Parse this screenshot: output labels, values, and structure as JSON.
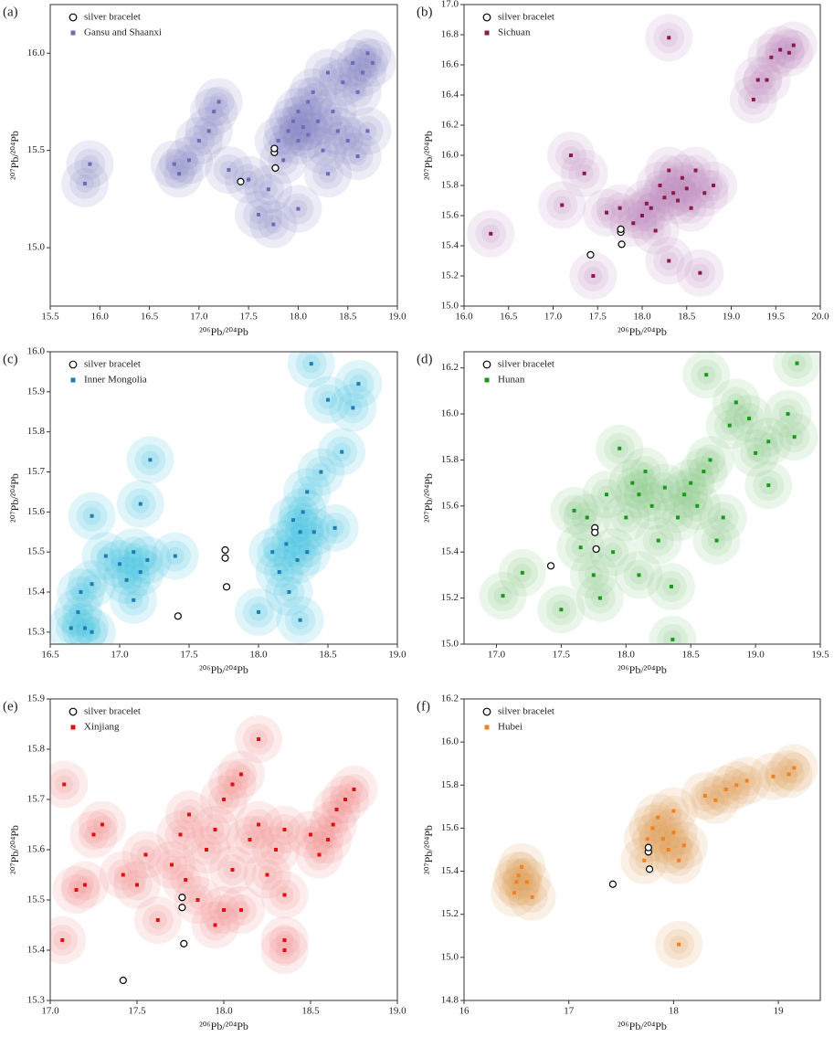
{
  "chart_data": [
    {
      "type": "scatter",
      "panel_label": "(a)",
      "x_label": "²⁰⁶Pb/²⁰⁴Pb",
      "y_label": "²⁰⁷Pb/²⁰⁴Pb",
      "xlim": [
        15.5,
        19.0
      ],
      "ylim": [
        14.7,
        16.25
      ],
      "xticks": [
        15.5,
        {
          "value": 16,
          "label": "16.0"
        },
        16.5,
        {
          "value": 17,
          "label": "17.0"
        },
        17.5,
        {
          "value": 18,
          "label": "18.0"
        },
        18.5,
        {
          "value": 19,
          "label": "19.0"
        }
      ],
      "yticks": [
        {
          "value": 15,
          "label": "15.0"
        },
        15.5,
        {
          "value": 16,
          "label": "16.0"
        }
      ],
      "series": [
        {
          "name": "silver bracelet",
          "color": "#000000",
          "marker": "circle",
          "x": [
            17.42,
            17.76,
            17.76,
            17.77
          ],
          "y": [
            15.34,
            15.49,
            15.51,
            15.41
          ]
        },
        {
          "name": "Gansu and Shaanxi",
          "color": "#6b6bb8",
          "halo_color": "#8a8ac8",
          "marker": "square",
          "x": [
            15.85,
            15.9,
            16.75,
            16.8,
            16.9,
            17.0,
            17.1,
            17.15,
            17.2,
            17.3,
            17.5,
            17.6,
            17.7,
            17.8,
            17.85,
            17.9,
            17.95,
            18.0,
            18.0,
            18.05,
            18.1,
            18.1,
            18.15,
            18.2,
            18.25,
            18.3,
            18.35,
            18.4,
            18.45,
            18.5,
            18.55,
            18.6,
            18.65,
            18.7,
            18.75,
            18.7,
            18.6,
            18.3,
            18.0,
            17.75
          ],
          "y": [
            15.33,
            15.43,
            15.43,
            15.38,
            15.45,
            15.55,
            15.6,
            15.7,
            15.75,
            15.4,
            15.35,
            15.17,
            15.3,
            15.55,
            15.45,
            15.6,
            15.65,
            15.55,
            15.7,
            15.62,
            15.58,
            15.75,
            15.8,
            15.65,
            15.5,
            15.9,
            15.7,
            15.6,
            15.85,
            15.55,
            15.95,
            15.8,
            15.9,
            15.6,
            15.95,
            16.0,
            15.47,
            15.38,
            15.2,
            15.12
          ]
        }
      ]
    },
    {
      "type": "scatter",
      "panel_label": "(b)",
      "x_label": "²⁰⁶Pb/²⁰⁴Pb",
      "y_label": "²⁰⁷Pb/²⁰⁴Pb",
      "xlim": [
        16.0,
        20.0
      ],
      "ylim": [
        15.0,
        17.0
      ],
      "xticks": [
        {
          "value": 16,
          "label": "16.0"
        },
        16.5,
        {
          "value": 17,
          "label": "17.0"
        },
        17.5,
        {
          "value": 18,
          "label": "18.0"
        },
        18.5,
        {
          "value": 19,
          "label": "19.0"
        },
        19.5,
        {
          "value": 20,
          "label": "20.0"
        }
      ],
      "yticks": [
        {
          "value": 15,
          "label": "15.0"
        },
        15.2,
        15.4,
        15.6,
        15.8,
        {
          "value": 16,
          "label": "16.0"
        },
        16.2,
        16.4,
        16.6,
        16.8,
        {
          "value": 17,
          "label": "17.0"
        }
      ],
      "series": [
        {
          "name": "silver bracelet",
          "color": "#000000",
          "marker": "circle",
          "x": [
            17.42,
            17.76,
            17.76,
            17.77
          ],
          "y": [
            15.34,
            15.49,
            15.51,
            15.41
          ]
        },
        {
          "name": "Sichuan",
          "color": "#8b1a4a",
          "halo_color": "#c090c0",
          "marker": "square",
          "x": [
            16.3,
            17.1,
            17.2,
            17.35,
            17.45,
            17.6,
            17.75,
            17.9,
            18.0,
            18.05,
            18.1,
            18.15,
            18.2,
            18.25,
            18.3,
            18.35,
            18.4,
            18.45,
            18.5,
            18.55,
            18.6,
            18.7,
            18.8,
            18.65,
            18.3,
            18.3,
            19.25,
            19.3,
            19.45,
            19.55,
            19.7,
            19.65,
            19.4
          ],
          "y": [
            15.48,
            15.67,
            16.0,
            15.88,
            15.2,
            15.62,
            15.65,
            15.55,
            15.6,
            15.68,
            15.65,
            15.5,
            15.8,
            15.72,
            15.9,
            15.75,
            15.7,
            15.85,
            15.78,
            15.65,
            15.9,
            15.75,
            15.8,
            15.22,
            15.3,
            16.78,
            16.37,
            16.5,
            16.65,
            16.7,
            16.73,
            16.68,
            16.5
          ]
        }
      ]
    },
    {
      "type": "scatter",
      "panel_label": "(c)",
      "x_label": "²⁰⁶Pb/²⁰⁴Pb",
      "y_label": "²⁰⁷Pb/²⁰⁴Pb",
      "xlim": [
        16.5,
        19.0
      ],
      "ylim": [
        15.27,
        16.0
      ],
      "xticks": [
        16.5,
        {
          "value": 17,
          "label": "17.0"
        },
        17.5,
        {
          "value": 18,
          "label": "18.0"
        },
        18.5,
        {
          "value": 19,
          "label": "19.0"
        }
      ],
      "yticks": [
        15.3,
        15.4,
        15.5,
        15.6,
        15.7,
        15.8,
        15.9,
        {
          "value": 16,
          "label": "16.0"
        }
      ],
      "series": [
        {
          "name": "silver bracelet",
          "color": "#000000",
          "marker": "circle",
          "x": [
            17.42,
            17.76,
            17.76,
            17.77
          ],
          "y": [
            15.34,
            15.505,
            15.485,
            15.413
          ]
        },
        {
          "name": "Inner Mongolia",
          "color": "#1f7fb0",
          "halo_color": "#40c0e0",
          "marker": "square",
          "x": [
            16.65,
            16.7,
            16.72,
            16.75,
            16.8,
            16.8,
            16.8,
            16.9,
            17.0,
            17.05,
            17.1,
            17.1,
            17.15,
            17.15,
            17.2,
            17.22,
            17.4,
            18.0,
            18.1,
            18.15,
            18.2,
            18.25,
            18.28,
            18.3,
            18.32,
            18.35,
            18.35,
            18.4,
            18.3,
            18.22,
            18.45,
            18.55,
            18.5,
            18.6,
            18.68,
            18.72,
            18.38
          ],
          "y": [
            15.31,
            15.35,
            15.4,
            15.31,
            15.42,
            15.3,
            15.59,
            15.49,
            15.47,
            15.43,
            15.38,
            15.5,
            15.45,
            15.62,
            15.48,
            15.73,
            15.49,
            15.35,
            15.5,
            15.45,
            15.52,
            15.58,
            15.48,
            15.55,
            15.6,
            15.5,
            15.65,
            15.55,
            15.33,
            15.4,
            15.7,
            15.56,
            15.88,
            15.75,
            15.86,
            15.92,
            15.97
          ]
        }
      ]
    },
    {
      "type": "scatter",
      "panel_label": "(d)",
      "x_label": "²⁰⁶Pb/²⁰⁴Pb",
      "y_label": "²⁰⁷Pb/²⁰⁴Pb",
      "xlim": [
        16.75,
        19.5
      ],
      "ylim": [
        15.0,
        16.27
      ],
      "xticks": [
        {
          "value": 17,
          "label": "17.0"
        },
        17.5,
        {
          "value": 18,
          "label": "18.0"
        },
        18.5,
        {
          "value": 19,
          "label": "19.0"
        },
        19.5
      ],
      "yticks": [
        {
          "value": 15,
          "label": "15.0"
        },
        15.2,
        15.4,
        15.6,
        15.8,
        {
          "value": 16,
          "label": "16.0"
        },
        16.2
      ],
      "series": [
        {
          "name": "silver bracelet",
          "color": "#000000",
          "marker": "circle",
          "x": [
            17.42,
            17.76,
            17.76,
            17.77
          ],
          "y": [
            15.34,
            15.505,
            15.485,
            15.413
          ]
        },
        {
          "name": "Hunan",
          "color": "#1a9a1a",
          "halo_color": "#80c880",
          "marker": "square",
          "x": [
            17.05,
            17.2,
            17.5,
            17.6,
            17.65,
            17.7,
            17.75,
            17.8,
            17.85,
            17.9,
            17.95,
            18.0,
            18.05,
            18.1,
            18.15,
            18.1,
            18.2,
            18.25,
            18.3,
            18.35,
            18.4,
            18.45,
            18.5,
            18.55,
            18.6,
            18.65,
            18.7,
            18.75,
            18.8,
            18.85,
            18.95,
            19.0,
            19.1,
            19.1,
            19.25,
            19.32,
            19.3,
            18.62,
            18.36
          ],
          "y": [
            15.21,
            15.31,
            15.15,
            15.58,
            15.42,
            15.55,
            15.3,
            15.2,
            15.65,
            15.4,
            15.85,
            15.55,
            15.7,
            15.65,
            15.75,
            15.3,
            15.6,
            15.45,
            15.68,
            15.25,
            15.55,
            15.65,
            15.7,
            15.6,
            15.75,
            15.8,
            15.45,
            15.55,
            15.95,
            16.05,
            15.98,
            15.83,
            15.88,
            15.69,
            16.0,
            16.22,
            15.9,
            16.17,
            15.02
          ]
        }
      ]
    },
    {
      "type": "scatter",
      "panel_label": "(e)",
      "x_label": "²⁰⁶Pb/²⁰⁴Pb",
      "y_label": "²⁰⁷Pb/²⁰⁴Pb",
      "xlim": [
        17.0,
        19.0
      ],
      "ylim": [
        15.3,
        15.9
      ],
      "xticks": [
        {
          "value": 17,
          "label": "17.0"
        },
        17.5,
        {
          "value": 18,
          "label": "18.0"
        },
        18.5,
        {
          "value": 19,
          "label": "19.0"
        }
      ],
      "yticks": [
        15.3,
        15.4,
        15.5,
        15.6,
        15.7,
        15.8,
        15.9
      ],
      "series": [
        {
          "name": "silver bracelet",
          "color": "#000000",
          "marker": "circle",
          "x": [
            17.42,
            17.76,
            17.76,
            17.77
          ],
          "y": [
            15.34,
            15.505,
            15.485,
            15.413
          ]
        },
        {
          "name": "Xinjiang",
          "color": "#e01010",
          "halo_color": "#f08a8a",
          "marker": "square",
          "x": [
            17.07,
            17.08,
            17.15,
            17.2,
            17.25,
            17.3,
            17.42,
            17.5,
            17.55,
            17.62,
            17.7,
            17.75,
            17.78,
            17.8,
            17.85,
            17.9,
            17.95,
            17.95,
            18.0,
            18.0,
            18.05,
            18.05,
            18.1,
            18.1,
            18.15,
            18.2,
            18.2,
            18.25,
            18.3,
            18.35,
            18.35,
            18.35,
            18.35,
            18.5,
            18.55,
            18.6,
            18.63,
            18.65,
            18.7,
            18.75
          ],
          "y": [
            15.42,
            15.73,
            15.52,
            15.53,
            15.63,
            15.65,
            15.55,
            15.53,
            15.59,
            15.46,
            15.57,
            15.63,
            15.54,
            15.67,
            15.5,
            15.6,
            15.64,
            15.45,
            15.7,
            15.48,
            15.73,
            15.56,
            15.75,
            15.48,
            15.62,
            15.82,
            15.65,
            15.55,
            15.6,
            15.64,
            15.51,
            15.42,
            15.4,
            15.63,
            15.59,
            15.62,
            15.65,
            15.68,
            15.7,
            15.72
          ]
        }
      ]
    },
    {
      "type": "scatter",
      "panel_label": "(f)",
      "x_label": "²⁰⁶Pb/²⁰⁴Pb",
      "y_label": "²⁰⁷Pb/²⁰⁴Pb",
      "xlim": [
        16.0,
        19.4
      ],
      "ylim": [
        14.8,
        16.2
      ],
      "xticks": [
        16,
        17,
        18,
        19
      ],
      "yticks": [
        14.8,
        {
          "value": 15,
          "label": "15.0"
        },
        15.2,
        15.4,
        15.6,
        15.8,
        {
          "value": 16,
          "label": "16.0"
        },
        16.2
      ],
      "series": [
        {
          "name": "silver bracelet",
          "color": "#000000",
          "marker": "circle",
          "x": [
            17.42,
            17.76,
            17.76,
            17.77
          ],
          "y": [
            15.34,
            15.49,
            15.51,
            15.41
          ]
        },
        {
          "name": "Hubei",
          "color": "#f08020",
          "halo_color": "#e0a060",
          "marker": "square",
          "x": [
            16.48,
            16.5,
            16.52,
            16.55,
            16.6,
            16.65,
            17.72,
            17.75,
            17.8,
            17.85,
            17.9,
            17.95,
            18.0,
            18.05,
            18.1,
            18.0,
            18.05,
            18.3,
            18.4,
            18.5,
            18.6,
            18.7,
            18.95,
            19.1,
            19.15
          ],
          "y": [
            15.3,
            15.35,
            15.38,
            15.42,
            15.35,
            15.28,
            15.45,
            15.55,
            15.6,
            15.65,
            15.55,
            15.5,
            15.58,
            15.45,
            15.52,
            15.68,
            15.06,
            15.75,
            15.73,
            15.78,
            15.8,
            15.82,
            15.84,
            15.85,
            15.88
          ]
        }
      ]
    }
  ]
}
